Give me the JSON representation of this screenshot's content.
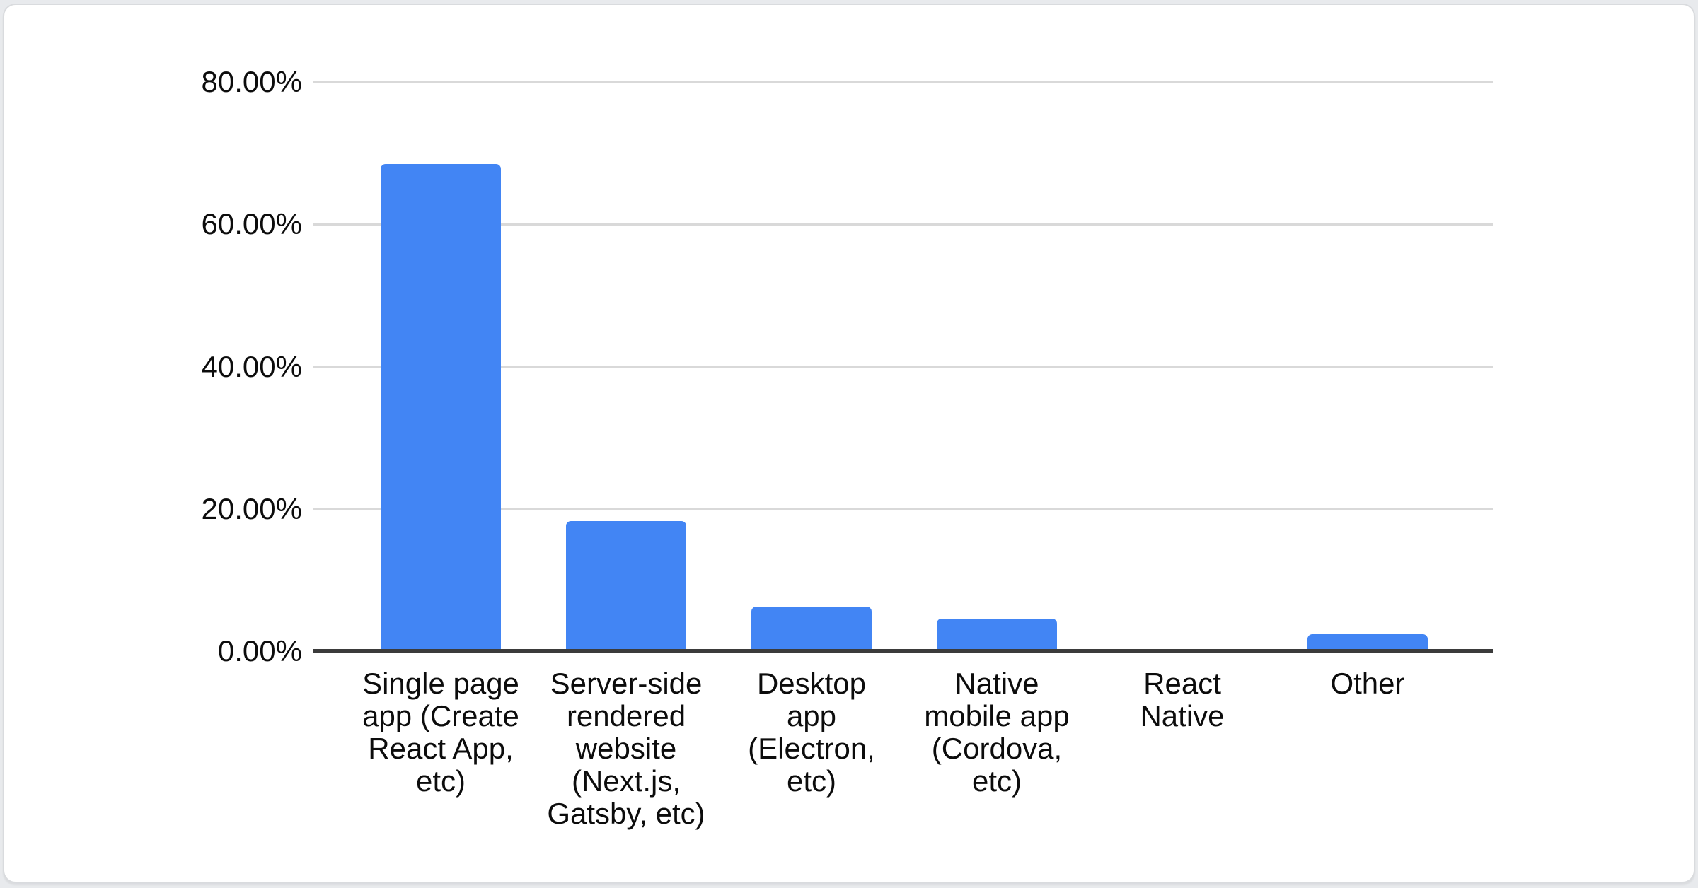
{
  "page": {
    "background_color": "#e8eaed"
  },
  "card": {
    "background_color": "#ffffff",
    "border_color": "#d9dbde"
  },
  "chart_data": {
    "type": "bar",
    "title": "",
    "xlabel": "",
    "ylabel": "",
    "categories": [
      "Single page\napp (Create\nReact App,\netc)",
      "Server-side\nrendered\nwebsite\n(Next.js,\nGatsby, etc)",
      "Desktop\napp\n(Electron,\netc)",
      "Native\nmobile app\n(Cordova,\netc)",
      "React\nNative",
      "Other"
    ],
    "values": [
      68.5,
      18.3,
      6.3,
      4.6,
      0,
      2.4
    ],
    "value_unit": "%",
    "ylim": [
      0,
      80
    ],
    "y_ticks": {
      "values": [
        0,
        20,
        40,
        60,
        80
      ],
      "labels": [
        "0.00%",
        "20.00%",
        "40.00%",
        "60.00%",
        "80.00%"
      ]
    },
    "grid": true,
    "legend": "none",
    "bar_color": "#4285f4",
    "gridline_color": "#d9d9d9",
    "axis_line_color": "#3b3b3b",
    "label_color": "#0c0c0c"
  }
}
